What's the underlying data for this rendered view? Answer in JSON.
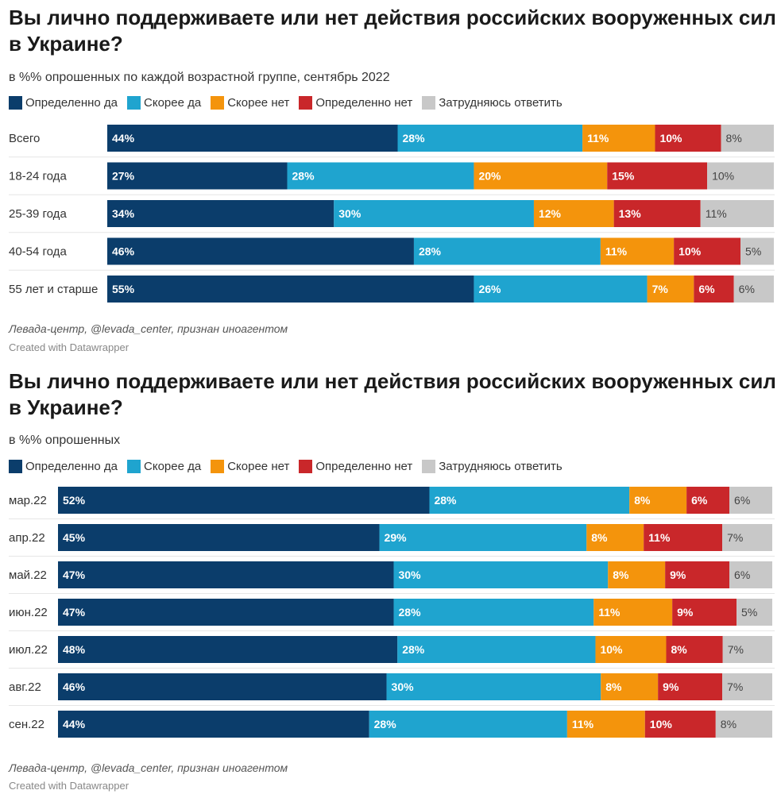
{
  "colors": {
    "definitely_yes": "#0b3d6b",
    "rather_yes": "#1fa4cf",
    "rather_no": "#f4940c",
    "definitely_no": "#c9272a",
    "hard_to_say": "#c8c8c8"
  },
  "legend": {
    "items": [
      {
        "label": "Определенно да",
        "color": "#0b3d6b"
      },
      {
        "label": "Скорее да",
        "color": "#1fa4cf"
      },
      {
        "label": "Скорее нет",
        "color": "#f4940c"
      },
      {
        "label": "Определенно нет",
        "color": "#c9272a"
      },
      {
        "label": "Затрудняюсь ответить",
        "color": "#c8c8c8"
      }
    ]
  },
  "chart_data": [
    {
      "type": "bar",
      "orientation": "horizontal",
      "stacked": true,
      "title": "Вы лично поддерживаете или нет действия российских вооруженных сил в Украине?",
      "subtitle": "в %% опрошенных по каждой возрастной группе, сентябрь 2022",
      "source": "Левада-центр, @levada_center, признан иноагентом",
      "credit": "Created with Datawrapper",
      "categories": [
        "Всего",
        "18-24 года",
        "25-39 года",
        "40-54 года",
        "55 лет и старше"
      ],
      "series": [
        {
          "name": "Определенно да",
          "values": [
            44,
            27,
            34,
            46,
            55
          ]
        },
        {
          "name": "Скорее да",
          "values": [
            28,
            28,
            30,
            28,
            26
          ]
        },
        {
          "name": "Скорее нет",
          "values": [
            11,
            20,
            12,
            11,
            7
          ]
        },
        {
          "name": "Определенно нет",
          "values": [
            10,
            15,
            13,
            10,
            6
          ]
        },
        {
          "name": "Затрудняюсь ответить",
          "values": [
            8,
            10,
            11,
            5,
            6
          ]
        }
      ],
      "unit": "%",
      "legend_position": "top-left"
    },
    {
      "type": "bar",
      "orientation": "horizontal",
      "stacked": true,
      "title": "Вы лично поддерживаете или нет действия российских вооруженных сил в Украине?",
      "subtitle": "в %% опрошенных",
      "source": "Левада-центр, @levada_center, признан иноагентом",
      "credit": "Created with Datawrapper",
      "categories": [
        "мар.22",
        "апр.22",
        "май.22",
        "июн.22",
        "июл.22",
        "авг.22",
        "сен.22"
      ],
      "series": [
        {
          "name": "Определенно да",
          "values": [
            52,
            45,
            47,
            47,
            48,
            46,
            44
          ]
        },
        {
          "name": "Скорее да",
          "values": [
            28,
            29,
            30,
            28,
            28,
            30,
            28
          ]
        },
        {
          "name": "Скорее нет",
          "values": [
            8,
            8,
            8,
            11,
            10,
            8,
            11
          ]
        },
        {
          "name": "Определенно нет",
          "values": [
            6,
            11,
            9,
            9,
            8,
            9,
            10
          ]
        },
        {
          "name": "Затрудняюсь ответить",
          "values": [
            6,
            7,
            6,
            5,
            7,
            7,
            8
          ]
        }
      ],
      "unit": "%",
      "legend_position": "top-left"
    }
  ]
}
